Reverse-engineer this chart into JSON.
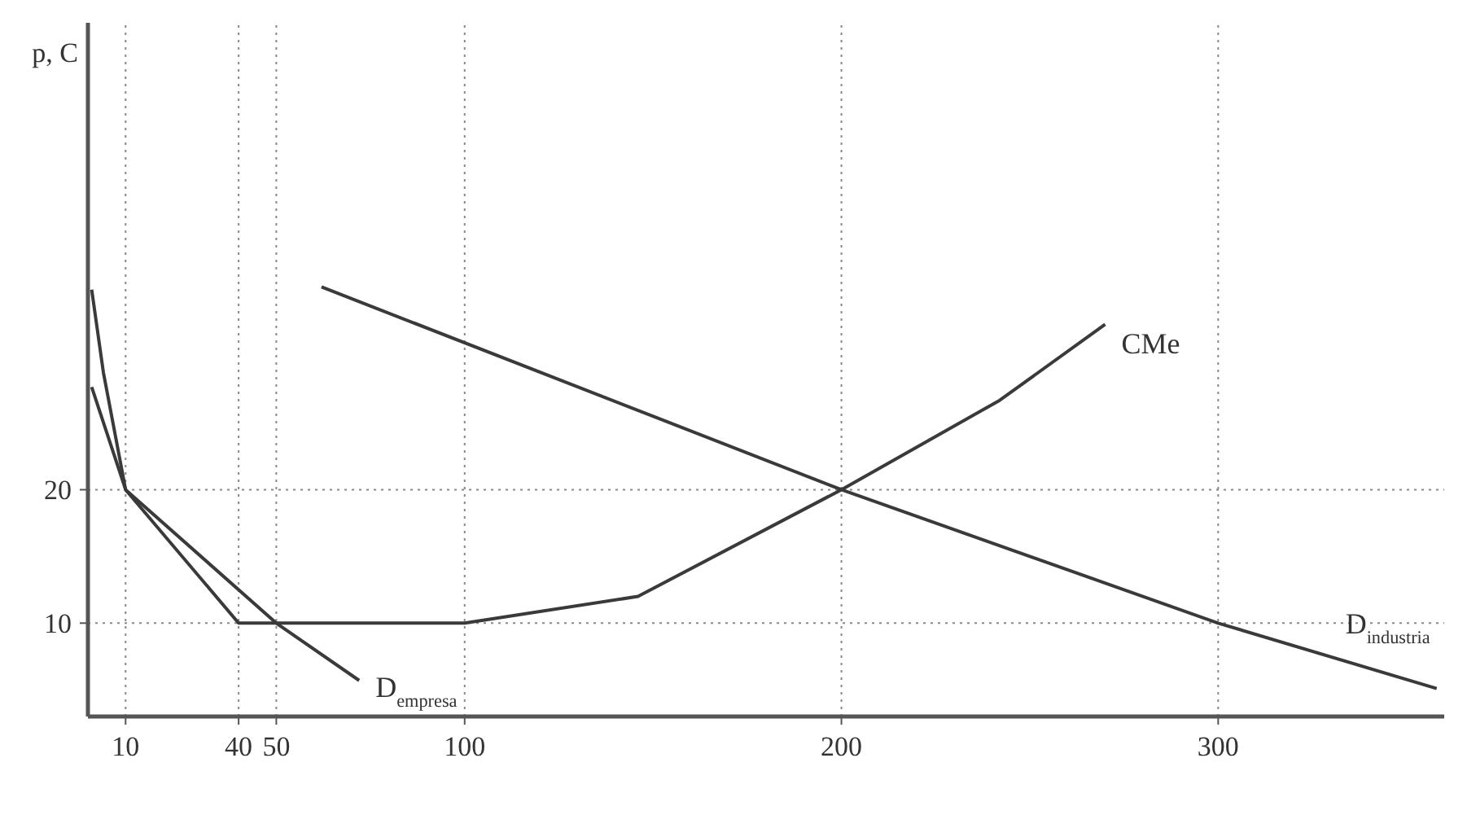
{
  "chart_data": {
    "type": "line",
    "ylabel": "p, C",
    "xlim": [
      0,
      360
    ],
    "xticks": [
      10,
      40,
      50,
      100,
      200,
      300
    ],
    "ylim": [
      3,
      55
    ],
    "yticks": [
      10,
      20
    ],
    "grid": false,
    "marker": "none",
    "line_style": "solid",
    "series": [
      {
        "name": "CMe",
        "color": "#3a3a3a",
        "x": [
          1,
          4.1,
          10,
          40,
          100,
          146,
          200,
          242,
          270
        ],
        "values": [
          35,
          28.8,
          20,
          10,
          10,
          12,
          20,
          26.7,
          32.4
        ]
      },
      {
        "name": "D$_{empresa}$",
        "color": "#3a3a3a",
        "x": [
          1,
          10,
          50,
          72
        ],
        "values": [
          27.7,
          20,
          10,
          5.7
        ]
      },
      {
        "name": "D$_{industria}$",
        "color": "#3a3a3a",
        "x": [
          62,
          200,
          300,
          358
        ],
        "values": [
          35.2,
          20,
          10,
          5.1
        ]
      }
    ],
    "ref_lines": [
      {
        "axis": "y",
        "value": 20,
        "line_style": "dotted",
        "color": "#888888"
      },
      {
        "axis": "y",
        "value": 10,
        "line_style": "dotted",
        "color": "#888888"
      },
      {
        "axis": "x",
        "value": 10,
        "line_style": "dotted",
        "color": "#888888"
      },
      {
        "axis": "x",
        "value": 40,
        "line_style": "dotted",
        "color": "#888888"
      },
      {
        "axis": "x",
        "value": 50,
        "line_style": "dotted",
        "color": "#888888"
      },
      {
        "axis": "x",
        "value": 100,
        "line_style": "dotted",
        "color": "#888888"
      },
      {
        "axis": "x",
        "value": 200,
        "line_style": "dotted",
        "color": "#888888"
      },
      {
        "axis": "x",
        "value": 300,
        "line_style": "dotted",
        "color": "#888888"
      }
    ]
  }
}
